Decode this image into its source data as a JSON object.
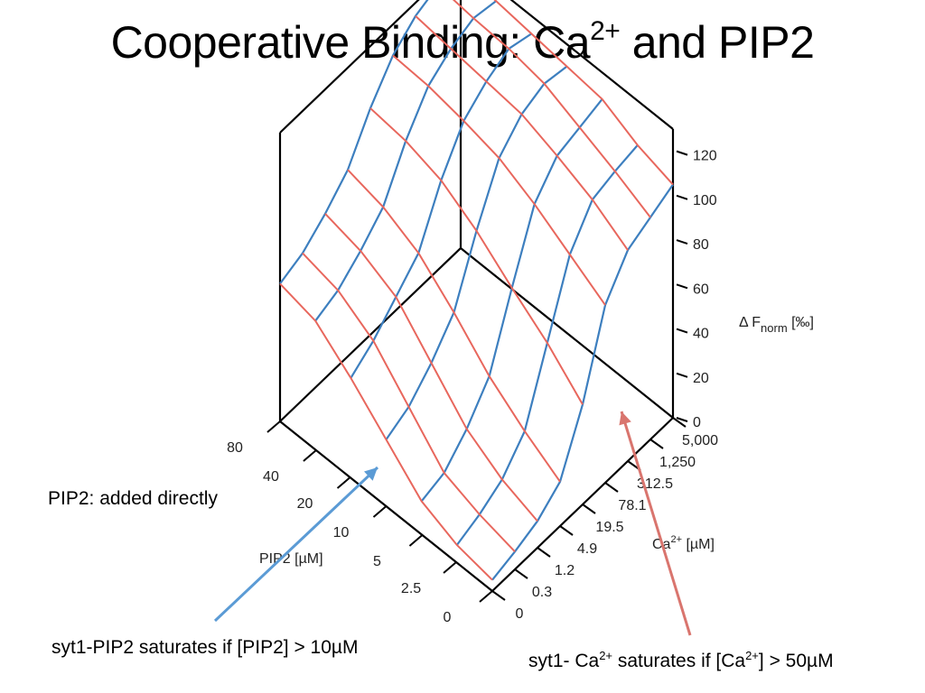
{
  "slide": {
    "title_main": "Cooperative Binding: Ca",
    "title_sup": "2+",
    "title_tail": " and PIP2",
    "note_pip2": "PIP2: added directly",
    "note_syt1_pip2": "syt1-PIP2 saturates if [PIP2] > 10µM",
    "note_syt1_ca_a": "syt1- Ca",
    "note_syt1_ca_sup1": "2+",
    "note_syt1_ca_b": " saturates if [Ca",
    "note_syt1_ca_sup2": "2+",
    "note_syt1_ca_c": "] > 50µM",
    "colors": {
      "pip2_lines": "#e8675d",
      "ca_lines": "#3d7fbf",
      "frame": "#000000",
      "pip2_arrow": "#5b9bd5",
      "ca_arrow": "#d9756e"
    }
  },
  "chart_data": {
    "type": "surface",
    "title": "",
    "zlabel": "Δ F",
    "zlabel_sub": "norm",
    "zlabel_unit": " [‰]",
    "pip2_label": "PIP2 [µM]",
    "ca_label_a": "Ca",
    "ca_label_sup": "2+",
    "ca_label_b": " [µM]",
    "z_ticks": [
      "0",
      "20",
      "40",
      "60",
      "80",
      "100",
      "120"
    ],
    "z_range": [
      0,
      130
    ],
    "pip2_ticks": [
      "80",
      "40",
      "20",
      "10",
      "5",
      "2.5",
      "0"
    ],
    "ca_ticks": [
      "5,000",
      "1,250",
      "312.5",
      "78.1",
      "19.5",
      "4.9",
      "1.2",
      "0.3",
      "0"
    ],
    "pip2_values": [
      0,
      2.5,
      5,
      10,
      20,
      40,
      80
    ],
    "ca_values": [
      0,
      0.3,
      1.2,
      4.9,
      19.5,
      78.1,
      312.5,
      1250,
      5000
    ],
    "z_values": [
      [
        5,
        8,
        12,
        20,
        45,
        80,
        95,
        100,
        105
      ],
      [
        8,
        12,
        18,
        30,
        60,
        90,
        105,
        108,
        110
      ],
      [
        15,
        18,
        28,
        42,
        72,
        100,
        112,
        115,
        118
      ],
      [
        30,
        35,
        45,
        58,
        85,
        108,
        118,
        122,
        120
      ],
      [
        45,
        52,
        62,
        72,
        95,
        112,
        120,
        125,
        122
      ],
      [
        58,
        62,
        70,
        80,
        100,
        115,
        122,
        126,
        124
      ],
      [
        62,
        66,
        74,
        84,
        102,
        116,
        124,
        128,
        125
      ]
    ]
  }
}
